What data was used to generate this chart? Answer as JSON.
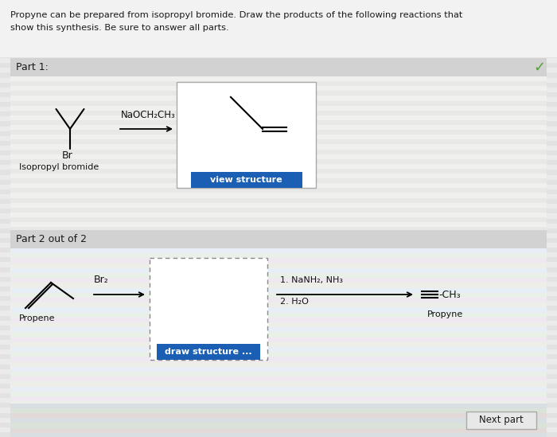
{
  "title_line1": "Propyne can be prepared from isopropyl bromide. Draw the products of the following reactions that",
  "title_line2": "show this synthesis. Be sure to answer all parts.",
  "bg_color": "#e8e8e8",
  "stripe_light": "#f0f0f0",
  "stripe_dark": "#e0e0e0",
  "part1_label": "Part 1:",
  "part2_label": "Part 2 out of 2",
  "header_bar_color": "#d0d0d0",
  "content_bg": "#ebebeb",
  "reagent1": "NaOCH₂CH₃",
  "isopropyl_label": "Isopropyl bromide",
  "br_label": "Br",
  "view_structure_text": "view structure",
  "view_btn_color": "#1a5fb4",
  "draw_structure_text": "draw structure ...",
  "draw_btn_color": "#1a5fb4",
  "reagent2": "Br₂",
  "reagent3_line1": "1. NaNH₂, NH₃",
  "reagent3_line2": "2. H₂O",
  "propene_label": "Propene",
  "propyne_label": "Propyne",
  "ch3_label": "-CH₃",
  "next_part_text": "Next part",
  "check_color": "#5a9e3a",
  "figw": 7.0,
  "figh": 5.49,
  "dpi": 100
}
